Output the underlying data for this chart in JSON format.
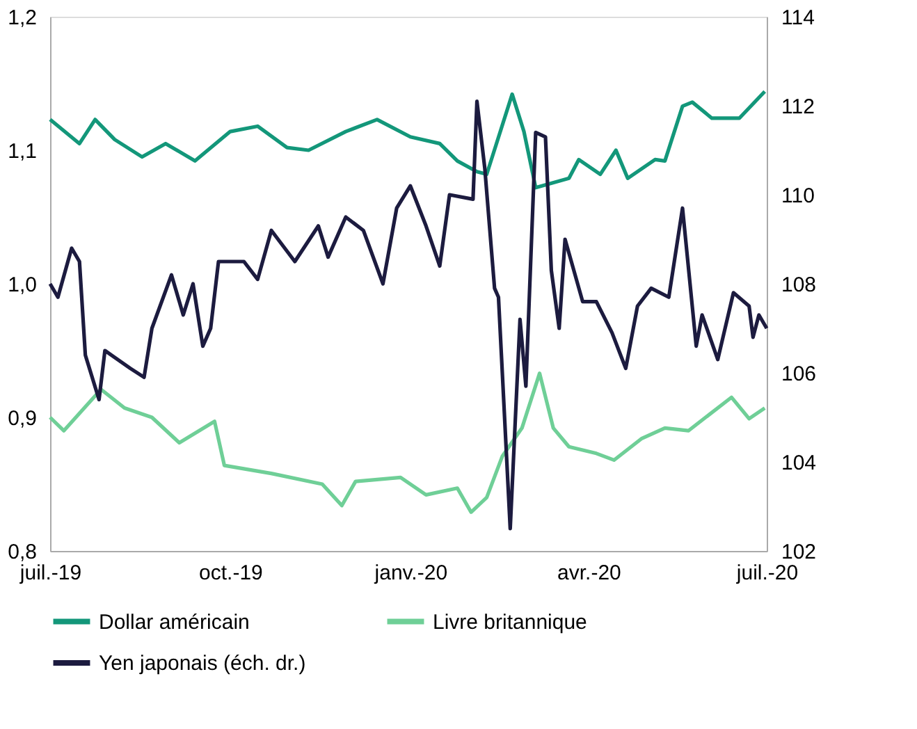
{
  "chart_data": {
    "type": "line",
    "legend": "bottom",
    "grid": false,
    "line_style": "solid",
    "marker": "none",
    "xlim": [
      "2019-07-01",
      "2020-07-01"
    ],
    "xticks": [
      {
        "value": "2019-07-01",
        "label": "juil.-19"
      },
      {
        "value": "2019-10-01",
        "label": "oct.-19"
      },
      {
        "value": "2020-01-01",
        "label": "janv.-20"
      },
      {
        "value": "2020-04-01",
        "label": "avr.-20"
      },
      {
        "value": "2020-07-01",
        "label": "juil.-20"
      }
    ],
    "ylim": [
      0.8,
      1.2
    ],
    "yticks": [
      {
        "value": 0.8,
        "label": "0,8"
      },
      {
        "value": 0.9,
        "label": "0,9"
      },
      {
        "value": 1.0,
        "label": "1,0"
      },
      {
        "value": 1.1,
        "label": "1,1"
      },
      {
        "value": 1.2,
        "label": "1,2"
      }
    ],
    "y2lim": [
      102,
      114
    ],
    "y2ticks": [
      102,
      104,
      106,
      108,
      110,
      112,
      114
    ],
    "series": [
      {
        "name": "Dollar américain",
        "color": "#13977a",
        "x": [
          "2019-07-01",
          "2019-07-16",
          "2019-07-24",
          "2019-08-03",
          "2019-08-17",
          "2019-08-29",
          "2019-09-13",
          "2019-10-01",
          "2019-10-15",
          "2019-10-30",
          "2019-11-10",
          "2019-11-29",
          "2019-12-15",
          "2020-01-01",
          "2020-01-16",
          "2020-01-25",
          "2020-02-04",
          "2020-02-09",
          "2020-02-22",
          "2020-02-28",
          "2020-03-05",
          "2020-03-22",
          "2020-03-27",
          "2020-04-07",
          "2020-04-15",
          "2020-04-21",
          "2020-05-05",
          "2020-05-10",
          "2020-05-19",
          "2020-05-24",
          "2020-06-03",
          "2020-06-17",
          "2020-06-30"
        ],
        "values": [
          1.123,
          1.105,
          1.123,
          1.108,
          1.095,
          1.105,
          1.092,
          1.114,
          1.118,
          1.102,
          1.1,
          1.114,
          1.123,
          1.11,
          1.105,
          1.092,
          1.084,
          1.082,
          1.142,
          1.114,
          1.072,
          1.079,
          1.093,
          1.082,
          1.1,
          1.079,
          1.093,
          1.092,
          1.133,
          1.136,
          1.124,
          1.124,
          1.144
        ]
      },
      {
        "name": "Livre britannique",
        "color": "#6fcf97",
        "x": [
          "2019-07-01",
          "2019-07-08",
          "2019-07-27",
          "2019-08-08",
          "2019-08-22",
          "2019-09-05",
          "2019-09-23",
          "2019-09-28",
          "2019-10-22",
          "2019-11-17",
          "2019-11-27",
          "2019-12-04",
          "2019-12-27",
          "2020-01-09",
          "2020-01-25",
          "2020-02-01",
          "2020-02-09",
          "2020-02-17",
          "2020-02-27",
          "2020-03-07",
          "2020-03-14",
          "2020-03-22",
          "2020-04-05",
          "2020-04-14",
          "2020-04-28",
          "2020-05-10",
          "2020-05-22",
          "2020-06-13",
          "2020-06-22",
          "2020-06-30"
        ],
        "values": [
          0.9,
          0.89,
          0.921,
          0.907,
          0.9,
          0.881,
          0.897,
          0.864,
          0.858,
          0.85,
          0.834,
          0.852,
          0.855,
          0.842,
          0.847,
          0.829,
          0.84,
          0.871,
          0.892,
          0.933,
          0.892,
          0.878,
          0.873,
          0.868,
          0.884,
          0.892,
          0.89,
          0.915,
          0.899,
          0.907
        ]
      },
      {
        "name": "Yen japonais (éch. dr.)",
        "color": "#1c1b3f",
        "axis": "y2",
        "x": [
          "2019-07-01",
          "2019-07-05",
          "2019-07-12",
          "2019-07-16",
          "2019-07-19",
          "2019-07-26",
          "2019-07-29",
          "2019-08-11",
          "2019-08-18",
          "2019-08-22",
          "2019-09-01",
          "2019-09-07",
          "2019-09-12",
          "2019-09-17",
          "2019-09-21",
          "2019-09-25",
          "2019-10-08",
          "2019-10-15",
          "2019-10-22",
          "2019-11-03",
          "2019-11-15",
          "2019-11-20",
          "2019-11-29",
          "2019-12-08",
          "2019-12-18",
          "2019-12-25",
          "2020-01-01",
          "2020-01-09",
          "2020-01-16",
          "2020-01-21",
          "2020-02-02",
          "2020-02-04",
          "2020-02-08",
          "2020-02-13",
          "2020-02-15",
          "2020-02-21",
          "2020-02-26",
          "2020-02-29",
          "2020-03-05",
          "2020-03-10",
          "2020-03-13",
          "2020-03-17",
          "2020-03-20",
          "2020-03-29",
          "2020-04-05",
          "2020-04-13",
          "2020-04-20",
          "2020-04-26",
          "2020-05-03",
          "2020-05-12",
          "2020-05-19",
          "2020-05-26",
          "2020-05-29",
          "2020-06-06",
          "2020-06-14",
          "2020-06-22",
          "2020-06-24",
          "2020-06-27",
          "2020-07-01"
        ],
        "values": [
          108.0,
          107.7,
          108.8,
          108.5,
          106.4,
          105.4,
          106.5,
          106.1,
          105.9,
          107.0,
          108.2,
          107.3,
          108.0,
          106.6,
          107.0,
          108.5,
          108.5,
          108.1,
          109.2,
          108.5,
          109.3,
          108.6,
          109.5,
          109.2,
          108.0,
          109.7,
          110.2,
          109.3,
          108.4,
          110.0,
          109.9,
          112.1,
          110.6,
          107.9,
          107.7,
          102.5,
          107.2,
          105.7,
          111.4,
          111.3,
          108.3,
          107.0,
          109.0,
          107.6,
          107.6,
          106.9,
          106.1,
          107.5,
          107.9,
          107.7,
          109.7,
          106.6,
          107.3,
          106.3,
          107.8,
          107.5,
          106.8,
          107.3,
          107.0
        ]
      }
    ]
  }
}
